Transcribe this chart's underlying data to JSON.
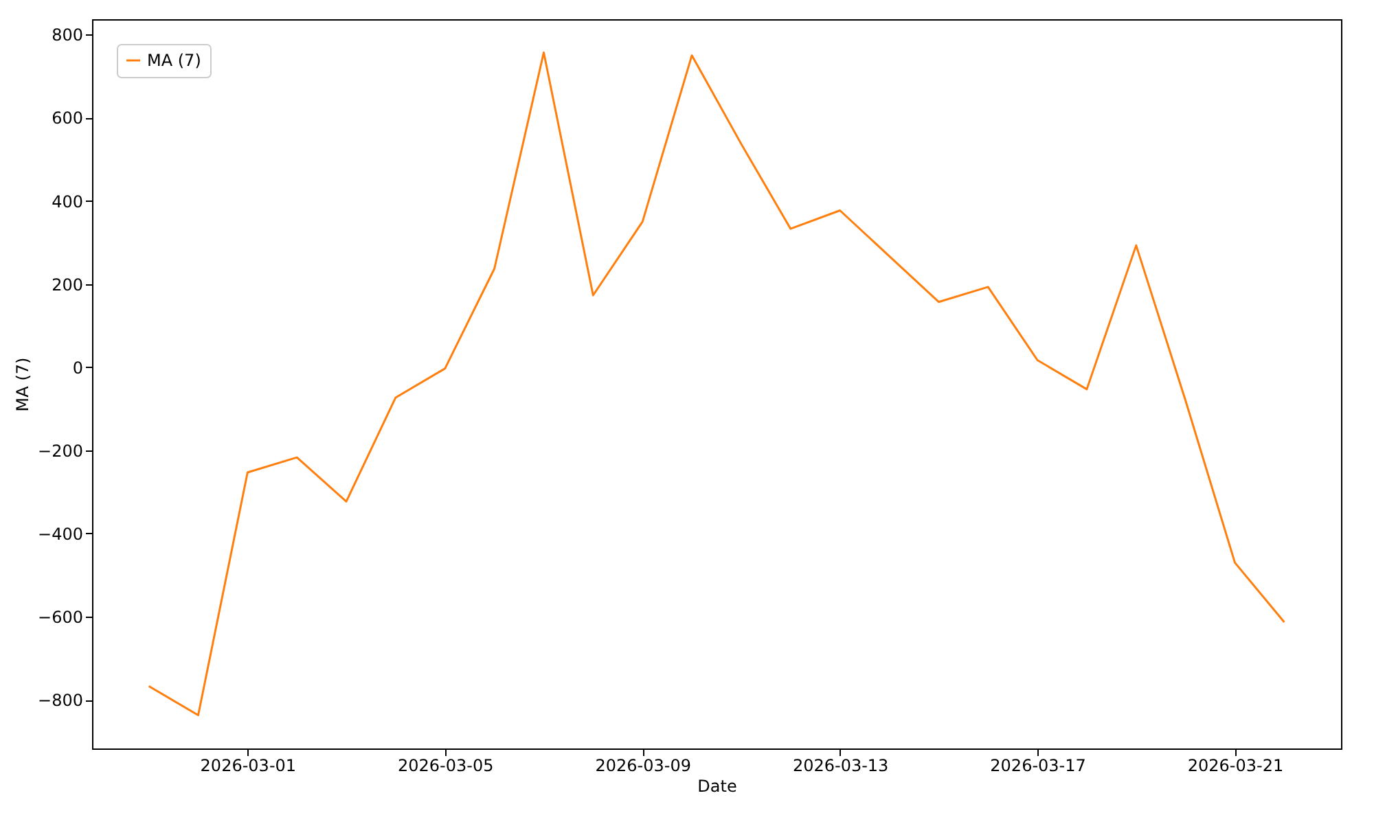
{
  "chart_data": {
    "type": "line",
    "xlabel": "Date",
    "ylabel": "MA (7)",
    "x": [
      "2026-02-27",
      "2026-02-28",
      "2026-03-01",
      "2026-03-02",
      "2026-03-03",
      "2026-03-04",
      "2026-03-05",
      "2026-03-06",
      "2026-03-07",
      "2026-03-08",
      "2026-03-09",
      "2026-03-10",
      "2026-03-11",
      "2026-03-12",
      "2026-03-13",
      "2026-03-14",
      "2026-03-15",
      "2026-03-16",
      "2026-03-17",
      "2026-03-18",
      "2026-03-19",
      "2026-03-20",
      "2026-03-21",
      "2026-03-22"
    ],
    "series": [
      {
        "name": "MA (7)",
        "color": "#ff7f0e",
        "values": [
          -767,
          -837,
          -253,
          -217,
          -323,
          -73,
          -3,
          237,
          757,
          173,
          350,
          750,
          537,
          333,
          377,
          267,
          157,
          193,
          17,
          -53,
          293,
          -80,
          -470,
          -613
        ]
      }
    ],
    "xlim": [
      "2026-02-25T20:24",
      "2026-03-23T03:36"
    ],
    "xticks": [
      "2026-03-01",
      "2026-03-05",
      "2026-03-09",
      "2026-03-13",
      "2026-03-17",
      "2026-03-21"
    ],
    "ylim": [
      -917,
      837
    ],
    "yticks": [
      -800,
      -600,
      -400,
      -200,
      0,
      200,
      400,
      600,
      800
    ],
    "grid": false,
    "legend": "top left",
    "line_style": "solid",
    "marker": "none"
  }
}
